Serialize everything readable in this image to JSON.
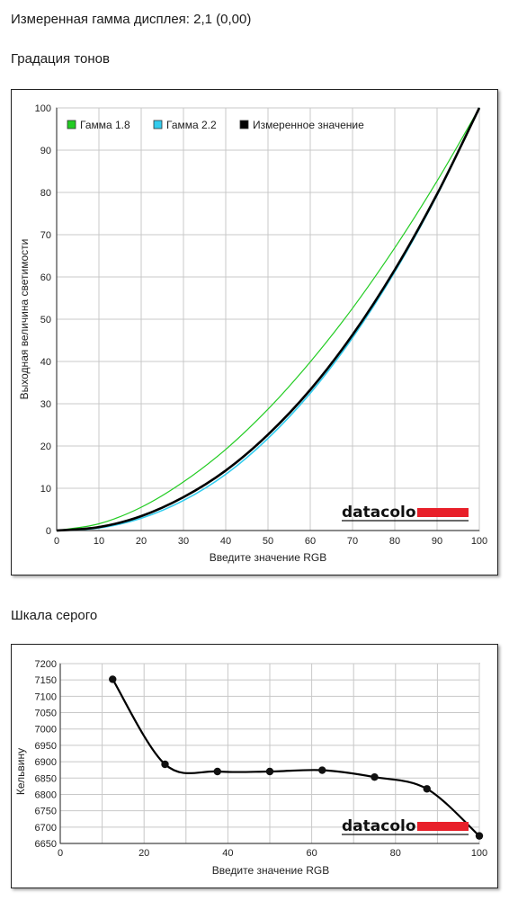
{
  "header": {
    "measured_gamma": "Измеренная гамма дисплея: 2,1 (0,00)"
  },
  "sections": {
    "tone": "Градация тонов",
    "gray": "Шкала серого"
  },
  "logo_text": "datacolor",
  "colors": {
    "gamma18": "#22cc22",
    "gamma22": "#33ccee",
    "measured": "#000000",
    "logo_red": "#e8202a",
    "grid": "#c8c8c8"
  },
  "chart_data": [
    {
      "type": "line",
      "title": "Градация тонов",
      "xlabel": "Введите значение RGB",
      "ylabel": "Выходная величина светимости",
      "xlim": [
        0,
        100
      ],
      "ylim": [
        0,
        100
      ],
      "xticks": [
        "0",
        "10",
        "20",
        "30",
        "40",
        "50",
        "60",
        "70",
        "80",
        "90",
        "100"
      ],
      "yticks": [
        "0",
        "10",
        "20",
        "30",
        "40",
        "50",
        "60",
        "70",
        "80",
        "90",
        "100"
      ],
      "grid": true,
      "legend_position": "top-left",
      "x": [
        0,
        10,
        20,
        30,
        40,
        50,
        60,
        70,
        80,
        90,
        100
      ],
      "series": [
        {
          "name": "Гамма 1.8",
          "color": "#22cc22",
          "values": [
            0,
            1.6,
            5.5,
            11.5,
            19.2,
            28.7,
            39.9,
            52.6,
            66.9,
            82.7,
            100
          ]
        },
        {
          "name": "Гамма 2.2",
          "color": "#33ccee",
          "values": [
            0,
            0.6,
            2.9,
            7.1,
            13.3,
            21.8,
            32.5,
            45.6,
            61.2,
            79.3,
            100
          ]
        },
        {
          "name": "Измеренное значение",
          "color": "#000000",
          "values": [
            0,
            0.8,
            3.4,
            7.9,
            14.2,
            22.7,
            33.3,
            46.3,
            61.7,
            79.6,
            100
          ]
        }
      ]
    },
    {
      "type": "line",
      "title": "Шкала серого",
      "xlabel": "Введите значение RGB",
      "ylabel": "Кельвину",
      "xlim": [
        0,
        100
      ],
      "ylim": [
        6650,
        7200
      ],
      "xticks": [
        "0",
        "20",
        "40",
        "60",
        "80",
        "100"
      ],
      "yticks": [
        "6650",
        "6700",
        "6750",
        "6800",
        "6850",
        "6900",
        "6950",
        "7000",
        "7050",
        "7100",
        "7150",
        "7200"
      ],
      "grid": true,
      "x": [
        12.5,
        25,
        37.5,
        50,
        62.5,
        75,
        87.5,
        100
      ],
      "series": [
        {
          "color": "#000000",
          "values": [
            7152,
            6892,
            6870,
            6870,
            6874,
            6853,
            6817,
            6673
          ]
        }
      ]
    }
  ]
}
